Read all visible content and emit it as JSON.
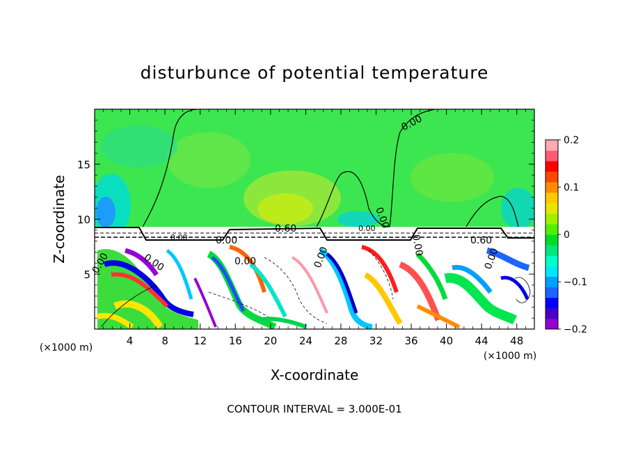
{
  "chart_data": {
    "type": "heatmap",
    "title": "disturbunce of potential temperature",
    "xlabel": "X-coordinate",
    "ylabel": "Z-coordinate",
    "x_unit": "(×1000 m)",
    "x_unit_right": "(×1000 m)",
    "xlim": [
      0,
      50
    ],
    "ylim": [
      0,
      20
    ],
    "x_ticks": [
      4,
      8,
      12,
      16,
      20,
      24,
      28,
      32,
      36,
      40,
      44,
      48
    ],
    "y_ticks": [
      5,
      10,
      15
    ],
    "colorbar": {
      "range": [
        -0.2,
        0.2
      ],
      "tick_labels": [
        "0.2",
        "0.1",
        "0",
        "−0.1",
        "−0.2"
      ],
      "tick_values": [
        0.2,
        0.1,
        0,
        -0.1,
        -0.2
      ],
      "colors": [
        "#9400d3",
        "#4b00c8",
        "#0000ff",
        "#1e64ff",
        "#00a0ff",
        "#00e6ff",
        "#00ffc8",
        "#00e678",
        "#00dc28",
        "#50f000",
        "#a0f000",
        "#e6e600",
        "#ffc800",
        "#ff8c00",
        "#ff4600",
        "#ff0000",
        "#ff5a78",
        "#ffaab4"
      ]
    },
    "contour_labels": [
      "0.00",
      "0.00",
      "0.60",
      "0.60",
      "0.00",
      "0.00",
      "0.00",
      "0.00",
      "0.00",
      "0.00",
      "0.00",
      "0.00",
      "0.00"
    ],
    "footer": "CONTOUR INTERVAL = 3.000E-01"
  }
}
